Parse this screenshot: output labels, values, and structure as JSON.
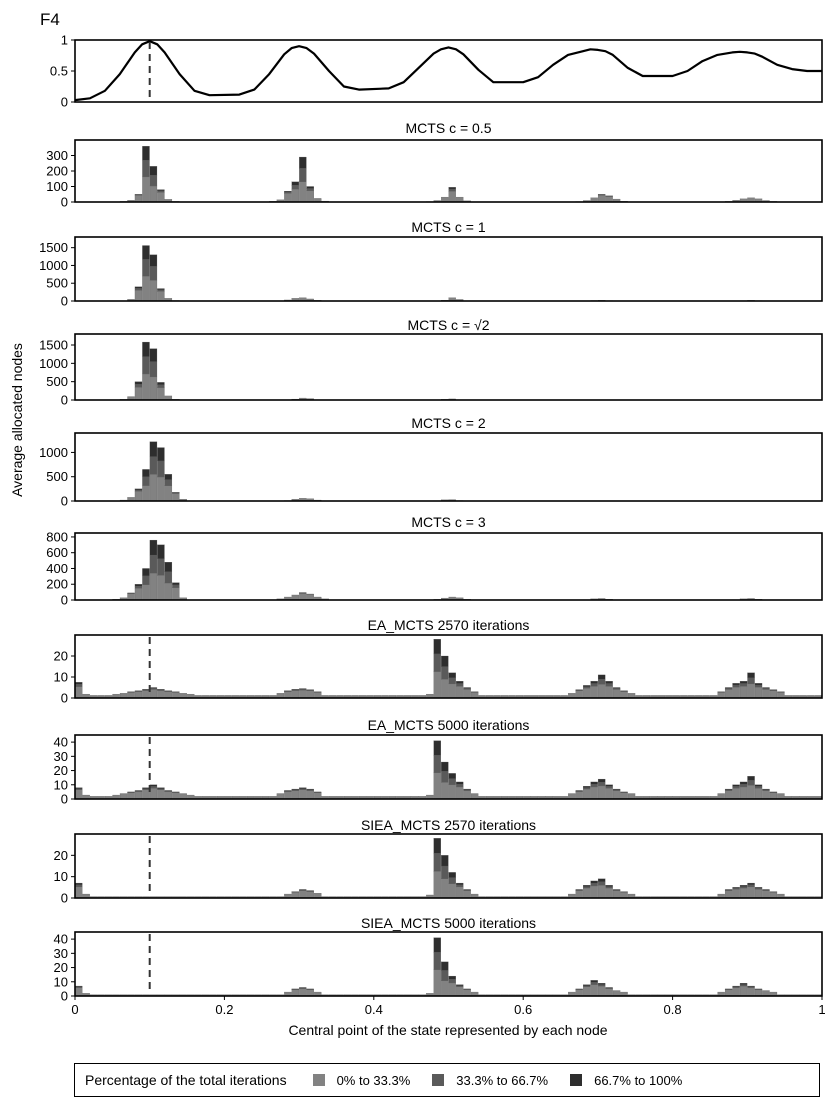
{
  "figure_label": "F4",
  "x_axis_label": "Central point of the state represented by each node",
  "y_axis_label": "Average allocated nodes",
  "x_ticks": [
    "0",
    "0.2",
    "0.4",
    "0.6",
    "0.8",
    "1"
  ],
  "colors": {
    "low": "#828282",
    "mid": "#5a5a5a",
    "high": "#2e2e2e",
    "function": "#000000",
    "marker": "#333333"
  },
  "legend": {
    "title": "Percentage of the total iterations",
    "items": [
      {
        "label": "0% to 33.3%",
        "color": "#828282"
      },
      {
        "label": "33.3% to 66.7%",
        "color": "#5a5a5a"
      },
      {
        "label": "66.7% to 100%",
        "color": "#2e2e2e"
      }
    ]
  },
  "chart_data": [
    {
      "type": "line",
      "title": "",
      "ylim": [
        0,
        1
      ],
      "y_ticks": [
        "0",
        "0.5",
        "1"
      ],
      "marker_x": 0.1,
      "x": [
        0,
        0.02,
        0.04,
        0.06,
        0.08,
        0.09,
        0.1,
        0.11,
        0.12,
        0.14,
        0.16,
        0.18,
        0.22,
        0.24,
        0.26,
        0.28,
        0.29,
        0.3,
        0.31,
        0.32,
        0.34,
        0.36,
        0.38,
        0.42,
        0.44,
        0.46,
        0.48,
        0.49,
        0.5,
        0.51,
        0.52,
        0.54,
        0.56,
        0.6,
        0.62,
        0.64,
        0.66,
        0.68,
        0.69,
        0.7,
        0.71,
        0.72,
        0.74,
        0.76,
        0.8,
        0.82,
        0.84,
        0.86,
        0.88,
        0.89,
        0.9,
        0.91,
        0.92,
        0.94,
        0.96,
        0.98,
        1
      ],
      "y": [
        0.03,
        0.06,
        0.18,
        0.45,
        0.8,
        0.93,
        0.98,
        0.93,
        0.8,
        0.45,
        0.18,
        0.11,
        0.12,
        0.2,
        0.45,
        0.77,
        0.87,
        0.9,
        0.87,
        0.78,
        0.5,
        0.25,
        0.2,
        0.22,
        0.32,
        0.55,
        0.78,
        0.85,
        0.88,
        0.85,
        0.77,
        0.52,
        0.32,
        0.32,
        0.4,
        0.6,
        0.76,
        0.82,
        0.85,
        0.84,
        0.82,
        0.76,
        0.55,
        0.42,
        0.42,
        0.5,
        0.66,
        0.76,
        0.8,
        0.81,
        0.8,
        0.78,
        0.73,
        0.6,
        0.53,
        0.5,
        0.5
      ]
    },
    {
      "type": "bar",
      "title": "MCTS c = 0.5",
      "ylim": [
        0,
        400
      ],
      "y_ticks": [
        "0",
        "100",
        "200",
        "300"
      ],
      "bins": 100,
      "peaks": [
        {
          "x": 0.1,
          "values": [
            4,
            12,
            50,
            360,
            230,
            80,
            18,
            4
          ]
        },
        {
          "x": 0.3,
          "values": [
            5,
            15,
            70,
            130,
            290,
            100,
            25,
            6
          ]
        },
        {
          "x": 0.5,
          "values": [
            3,
            10,
            35,
            95,
            35,
            8
          ]
        },
        {
          "x": 0.7,
          "values": [
            3,
            10,
            30,
            50,
            40,
            20,
            5
          ]
        },
        {
          "x": 0.9,
          "values": [
            4,
            12,
            22,
            30,
            22,
            10,
            4
          ]
        }
      ]
    },
    {
      "type": "bar",
      "title": "MCTS c = 1",
      "ylim": [
        0,
        1800
      ],
      "y_ticks": [
        "0",
        "500",
        "1000",
        "1500"
      ],
      "bins": 100,
      "peaks": [
        {
          "x": 0.1,
          "values": [
            10,
            50,
            400,
            1560,
            1300,
            350,
            80,
            15
          ]
        },
        {
          "x": 0.3,
          "values": [
            8,
            30,
            80,
            100,
            60,
            20
          ]
        },
        {
          "x": 0.5,
          "values": [
            6,
            25,
            100,
            45,
            10
          ]
        },
        {
          "x": 0.7,
          "values": [
            5,
            15,
            20,
            12,
            5
          ]
        },
        {
          "x": 0.9,
          "values": [
            5,
            12,
            18,
            12,
            5
          ]
        }
      ]
    },
    {
      "type": "bar",
      "title": "MCTS c = √2",
      "ylim": [
        0,
        1800
      ],
      "y_ticks": [
        "0",
        "500",
        "1000",
        "1500"
      ],
      "bins": 100,
      "peaks": [
        {
          "x": 0.1,
          "values": [
            20,
            100,
            500,
            1580,
            1400,
            480,
            120,
            20
          ]
        },
        {
          "x": 0.3,
          "values": [
            5,
            25,
            55,
            40,
            10
          ]
        },
        {
          "x": 0.5,
          "values": [
            5,
            20,
            30,
            10
          ]
        }
      ]
    },
    {
      "type": "bar",
      "title": "MCTS c = 2",
      "ylim": [
        0,
        1400
      ],
      "y_ticks": [
        "0",
        "500",
        "1000"
      ],
      "bins": 100,
      "peaks": [
        {
          "x": 0.1,
          "values": [
            20,
            80,
            250,
            650,
            1220,
            1100,
            550,
            180,
            40
          ]
        },
        {
          "x": 0.3,
          "values": [
            10,
            40,
            60,
            50,
            20
          ]
        },
        {
          "x": 0.5,
          "values": [
            8,
            25,
            30,
            10
          ]
        }
      ]
    },
    {
      "type": "bar",
      "title": "MCTS c = 3",
      "ylim": [
        0,
        850
      ],
      "y_ticks": [
        "0",
        "200",
        "400",
        "600",
        "800"
      ],
      "bins": 100,
      "peaks": [
        {
          "x": 0.1,
          "values": [
            10,
            30,
            90,
            200,
            400,
            760,
            700,
            480,
            220,
            30
          ]
        },
        {
          "x": 0.3,
          "values": [
            15,
            40,
            70,
            95,
            80,
            40,
            15
          ]
        },
        {
          "x": 0.5,
          "values": [
            8,
            25,
            40,
            30,
            10
          ]
        },
        {
          "x": 0.7,
          "values": [
            5,
            15,
            20,
            10
          ]
        },
        {
          "x": 0.9,
          "values": [
            5,
            15,
            20,
            10
          ]
        }
      ]
    },
    {
      "type": "bar",
      "title": "EA_MCTS 2570 iterations",
      "ylim": [
        0,
        30
      ],
      "y_ticks": [
        "0",
        "10",
        "20"
      ],
      "bins": 100,
      "marker_x": 0.1,
      "baseline": 1.3,
      "peaks": [
        {
          "x": 0.01,
          "values": [
            7.5,
            2
          ]
        },
        {
          "x": 0.1,
          "values": [
            2,
            2.5,
            3,
            3.5,
            4.2,
            5,
            4.2,
            3.5,
            3,
            2.5,
            2
          ]
        },
        {
          "x": 0.3,
          "values": [
            2.5,
            3.5,
            4.2,
            4.5,
            4,
            3
          ]
        },
        {
          "x": 0.5,
          "values": [
            2,
            28,
            20,
            12,
            8,
            5,
            3
          ]
        },
        {
          "x": 0.7,
          "values": [
            2.5,
            4,
            6,
            8,
            11,
            8,
            5,
            3.5,
            2.5
          ]
        },
        {
          "x": 0.9,
          "values": [
            3,
            5,
            7,
            8,
            12,
            7,
            5,
            4,
            3
          ]
        }
      ]
    },
    {
      "type": "bar",
      "title": "EA_MCTS 5000 iterations",
      "ylim": [
        0,
        45
      ],
      "y_ticks": [
        "0",
        "10",
        "20",
        "30",
        "40"
      ],
      "bins": 100,
      "marker_x": 0.1,
      "baseline": 2,
      "peaks": [
        {
          "x": 0.01,
          "values": [
            8,
            3
          ]
        },
        {
          "x": 0.1,
          "values": [
            3,
            4,
            5,
            6,
            8,
            10,
            8,
            6,
            5,
            4,
            3
          ]
        },
        {
          "x": 0.3,
          "values": [
            4,
            6,
            7,
            8,
            7,
            5
          ]
        },
        {
          "x": 0.5,
          "values": [
            3,
            41,
            26,
            18,
            12,
            7,
            4
          ]
        },
        {
          "x": 0.7,
          "values": [
            4,
            6,
            9,
            12,
            14,
            10,
            7,
            5,
            4
          ]
        },
        {
          "x": 0.9,
          "values": [
            4,
            7,
            10,
            12,
            16,
            10,
            7,
            5,
            4
          ]
        }
      ]
    },
    {
      "type": "bar",
      "title": "SIEA_MCTS 2570 iterations",
      "ylim": [
        0,
        30
      ],
      "y_ticks": [
        "0",
        "10",
        "20"
      ],
      "bins": 100,
      "marker_x": 0.1,
      "baseline": 0.7,
      "peaks": [
        {
          "x": 0.01,
          "values": [
            7,
            2
          ]
        },
        {
          "x": 0.3,
          "values": [
            2,
            3,
            4,
            3.5,
            2.5
          ]
        },
        {
          "x": 0.5,
          "values": [
            1.5,
            28,
            20,
            12,
            7,
            4,
            2
          ]
        },
        {
          "x": 0.7,
          "values": [
            2,
            4,
            6,
            8,
            9,
            6,
            4,
            3,
            2
          ]
        },
        {
          "x": 0.9,
          "values": [
            2,
            4,
            5,
            6,
            7,
            5,
            4,
            3,
            2
          ]
        }
      ]
    },
    {
      "type": "bar",
      "title": "SIEA_MCTS 5000 iterations",
      "ylim": [
        0,
        45
      ],
      "y_ticks": [
        "0",
        "10",
        "20",
        "30",
        "40"
      ],
      "bins": 100,
      "marker_x": 0.1,
      "baseline": 1,
      "peaks": [
        {
          "x": 0.01,
          "values": [
            7,
            2
          ]
        },
        {
          "x": 0.3,
          "values": [
            3,
            5,
            6,
            5,
            3
          ]
        },
        {
          "x": 0.5,
          "values": [
            2,
            41,
            24,
            14,
            8,
            5,
            3
          ]
        },
        {
          "x": 0.7,
          "values": [
            3,
            5,
            8,
            11,
            9,
            6,
            4,
            3
          ]
        },
        {
          "x": 0.9,
          "values": [
            3,
            5,
            7,
            9,
            7,
            5,
            4,
            3
          ]
        }
      ]
    }
  ]
}
